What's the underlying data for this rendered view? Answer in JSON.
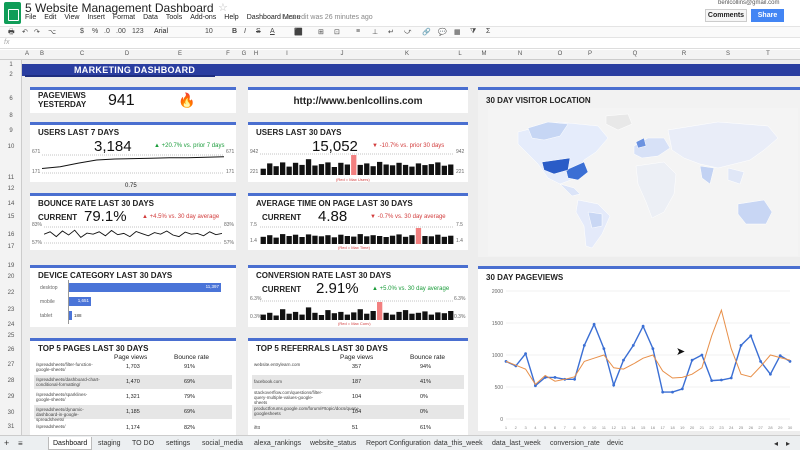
{
  "app": {
    "doc_title": "5 Website Management Dashboard",
    "menu": [
      "File",
      "Edit",
      "View",
      "Insert",
      "Format",
      "Data",
      "Tools",
      "Add-ons",
      "Help",
      "Dashboard Menu"
    ],
    "last_edit": "Last edit was 26 minutes ago",
    "user_email": "benlcollins@gmail.com",
    "comments_label": "Comments",
    "share_label": "Share",
    "font_name": "Arial",
    "font_size": "10",
    "cursor_type": "arrow"
  },
  "columns": [
    "A",
    "B",
    "C",
    "D",
    "E",
    "F",
    "G",
    "H",
    "I",
    "J",
    "K",
    "L",
    "M",
    "N",
    "O",
    "P",
    "Q",
    "R",
    "S",
    "T"
  ],
  "rows": [
    "1",
    "2",
    "6",
    "8",
    "9",
    "10",
    "11",
    "12",
    "14",
    "15",
    "16",
    "17",
    "19",
    "20",
    "22",
    "23",
    "24",
    "25",
    "26",
    "27",
    "28",
    "29",
    "30",
    "31",
    "32",
    "33",
    "34"
  ],
  "colors": {
    "accent": "#4a6fd0",
    "band": "#2a3ea0",
    "positive": "#1a9c3a",
    "negative": "#d23c3c",
    "bar": "#111111",
    "bar_highlight": "#f28080",
    "line_blue": "#3b6fd4",
    "line_orange": "#e8904a"
  },
  "dashboard": {
    "title": "MARKETING DASHBOARD",
    "pageviews_label": "PAGEVIEWS YESTERDAY",
    "pageviews_value": "941",
    "url": "http://www.benlcollins.com",
    "visitor_location_title": "30 DAY VISITOR LOCATION",
    "users7": {
      "title": "USERS LAST 7 DAYS",
      "value": "3,184",
      "change": "▲ +20.7% vs. prior 7 days",
      "max": "671",
      "min": "171",
      "extra": "0.75",
      "series": [
        0.25,
        0.35,
        0.55,
        0.72,
        0.78,
        0.8,
        0.82,
        0.85,
        0.85,
        0.87,
        0.9
      ]
    },
    "users30": {
      "title": "USERS LAST 30 DAYS",
      "value": "15,052",
      "change": "▼ -10.7% vs. prior 30 days",
      "max": "942",
      "min": "221",
      "note": "(Red = Max Users)"
    },
    "bounce": {
      "title": "BOUNCE RATE LAST 30 DAYS",
      "current": "CURRENT",
      "value": "79.1%",
      "change": "▲ +4.5% vs. 30 day average",
      "max": "83%",
      "min": "57%"
    },
    "time": {
      "title": "AVERAGE TIME ON PAGE LAST 30 DAYS",
      "current": "CURRENT",
      "value": "4.88",
      "change": "▼ -0.7% vs. 30 day average",
      "max": "7.5",
      "min": "1.4",
      "note": "(Red = Max Time)"
    },
    "device": {
      "title": "DEVICE CATEGORY LAST 30 DAYS",
      "items": [
        {
          "label": "desktop",
          "value": "11,397",
          "frac": 1.0
        },
        {
          "label": "mobile",
          "value": "1,651",
          "frac": 0.145
        },
        {
          "label": "tablet",
          "value": "188",
          "frac": 0.017
        }
      ]
    },
    "conversion": {
      "title": "CONVERSION RATE LAST 30 DAYS",
      "current": "CURRENT",
      "value": "2.91%",
      "change": "▲ +5.0% vs. 30 day average",
      "max": "6.3%",
      "min": "0.3%",
      "note": "(Red = Max Conv)"
    },
    "pageviews30": {
      "title": "30 DAY PAGEVIEWS"
    },
    "top_pages": {
      "title": "TOP 5 PAGES LAST 30 DAYS",
      "h1": "Page views",
      "h2": "Bounce rate",
      "rows": [
        {
          "page": "/spreadsheets/filter-function-google-sheets/",
          "views": "1,703",
          "rate": "91%"
        },
        {
          "page": "/spreadsheets/dashboard-chart-conditional-formatting/",
          "views": "1,470",
          "rate": "69%"
        },
        {
          "page": "/spreadsheets/sparklines-google-sheets/",
          "views": "1,321",
          "rate": "79%"
        },
        {
          "page": "/spreadsheets/dynamic-dashboard-in-google-spreadsheets/",
          "views": "1,185",
          "rate": "69%"
        },
        {
          "page": "/spreadsheets/",
          "views": "1,174",
          "rate": "82%"
        }
      ]
    },
    "top_referrals": {
      "title": "TOP 5 REFERRALS LAST 30 DAYS",
      "h1": "Page views",
      "h2": "Bounce rate",
      "rows": [
        {
          "ref": "website.entrylearn.com",
          "views": "357",
          "rate": "94%"
        },
        {
          "ref": "facebook.com",
          "views": "187",
          "rate": "41%"
        },
        {
          "ref": "stackoverflow.com/questions/filter-query-multiple-values-google-sheets",
          "views": "104",
          "rate": "0%"
        },
        {
          "ref": "productforums.google.com/forum/#!topic/docs/query-googlesheets",
          "views": "104",
          "rate": "0%"
        },
        {
          "ref": "ifttt",
          "views": "51",
          "rate": "61%"
        }
      ]
    }
  },
  "chart_data": [
    {
      "type": "bar",
      "title": "USERS LAST 30 DAYS",
      "values": [
        30,
        55,
        42,
        60,
        40,
        58,
        48,
        75,
        45,
        52,
        60,
        38,
        58,
        50,
        95,
        48,
        55,
        42,
        62,
        50,
        46,
        58,
        48,
        40,
        55,
        47,
        52,
        60,
        44,
        50
      ],
      "highlight_index": 14
    },
    {
      "type": "bar",
      "title": "AVERAGE TIME ON PAGE LAST 30 DAYS",
      "values": [
        45,
        55,
        40,
        62,
        50,
        58,
        44,
        60,
        52,
        48,
        55,
        42,
        58,
        50,
        46,
        62,
        48,
        55,
        50,
        44,
        52,
        60,
        45,
        55,
        100,
        50,
        48,
        58,
        45,
        52
      ],
      "highlight_index": 24
    },
    {
      "type": "bar",
      "title": "CONVERSION RATE LAST 30 DAYS",
      "values": [
        30,
        40,
        25,
        60,
        35,
        45,
        30,
        70,
        40,
        28,
        55,
        38,
        45,
        30,
        42,
        60,
        35,
        50,
        100,
        40,
        30,
        45,
        55,
        35,
        40,
        48,
        30,
        42,
        38,
        50
      ],
      "highlight_index": 18
    },
    {
      "type": "line",
      "title": "BOUNCE RATE LAST 30 DAYS",
      "values": [
        0.55,
        0.7,
        0.4,
        0.75,
        0.5,
        0.8,
        0.35,
        0.62,
        0.55,
        0.7,
        0.45,
        0.78,
        0.52,
        0.6,
        0.4,
        0.72,
        0.58,
        0.45,
        0.65,
        0.55,
        0.75,
        0.5,
        0.4,
        0.68,
        0.55,
        0.6,
        0.45,
        0.7,
        0.52,
        0.6
      ]
    },
    {
      "type": "line",
      "title": "30 DAY PAGEVIEWS",
      "ylim": [
        0,
        2000
      ],
      "ticks": [
        "2000",
        "1500",
        "1000",
        "500",
        "0"
      ],
      "series": [
        {
          "name": "blue",
          "values": [
            900,
            830,
            1020,
            520,
            650,
            650,
            620,
            620,
            1150,
            1480,
            1100,
            530,
            920,
            1150,
            1450,
            1100,
            420,
            420,
            470,
            920,
            1000,
            600,
            610,
            640,
            1150,
            1300,
            900,
            700,
            990,
            900
          ]
        },
        {
          "name": "orange",
          "values": [
            900,
            840,
            780,
            540,
            680,
            590,
            620,
            660,
            900,
            950,
            1000,
            800,
            780,
            860,
            950,
            1000,
            750,
            640,
            650,
            700,
            800,
            1300,
            1700,
            1100,
            700,
            660,
            820,
            1000,
            960,
            920
          ]
        }
      ]
    }
  ],
  "tabs": [
    "Dashboard",
    "staging",
    "TO DO",
    "settings",
    "social_media",
    "alexa_rankings",
    "website_status",
    "Report Configuration",
    "data_this_week",
    "data_last_week",
    "conversion_rate",
    "devic"
  ],
  "toolbar_glyphs": {
    "print": "🖶",
    "undo": "↶",
    "redo": "↷",
    "paint": "⌥",
    "dollar": "$",
    "pct": "%",
    "dec0": ".0",
    "dec00": ".00",
    "num": "123",
    "bold": "B",
    "italic": "I",
    "strike": "S",
    "textA": "A",
    "fill": "⬛",
    "borders": "⊞",
    "merge": "⊡",
    "align": "≡",
    "valign": "⊥",
    "wrap": "↵",
    "rotate": "⤻",
    "link": "🔗",
    "comment": "💬",
    "chart": "▦",
    "filter": "⧩",
    "sigma": "Σ",
    "fire": "🔥"
  }
}
